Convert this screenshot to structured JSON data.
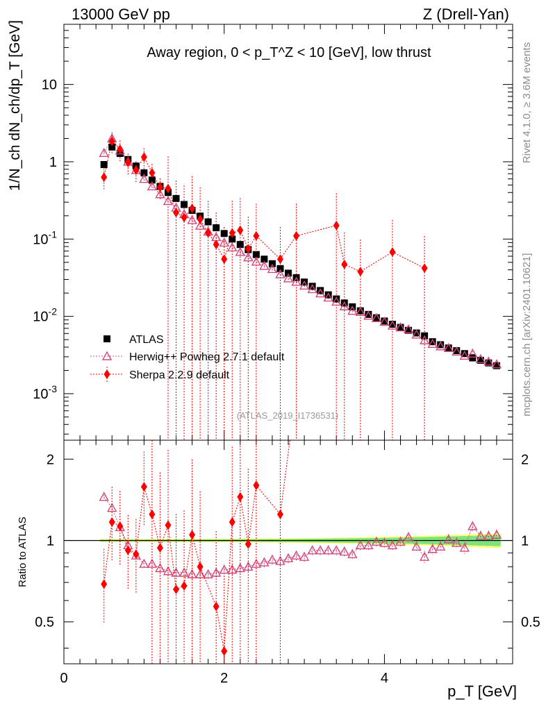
{
  "header": {
    "left": "13000 GeV pp",
    "right": "Z (Drell-Yan)"
  },
  "side": {
    "rivet": "Rivet 4.1.0, ≥ 3.6M events",
    "mcplots": "mcplots.cern.ch [arXiv:2401.10621]"
  },
  "chart_data": {
    "type": "scatter",
    "title": "Away region, 0 < p_T^Z < 10 [GeV], low thrust",
    "analysis_label": "(ATLAS_2019_I1736531)",
    "xlabel": "p_T [GeV]",
    "ylabel_main": "1/N_ch dN_ch/dp_T [GeV]",
    "ylabel_ratio": "Ratio to ATLAS",
    "xlim": [
      0,
      5.6
    ],
    "ylim_main": [
      0.00025,
      60
    ],
    "ylim_ratio": [
      0.35,
      2.35
    ],
    "yscale_main": "log",
    "yscale_ratio": "log",
    "x_ticks": [
      "0",
      "2",
      "4"
    ],
    "y_ticks_main": [
      "10",
      "1",
      "10^-1",
      "10^-2",
      "10^-3"
    ],
    "y_ticks_ratio": [
      "2",
      "1",
      "0.5"
    ],
    "legend_position": "lower-left",
    "x": [
      0.5,
      0.6,
      0.7,
      0.8,
      0.9,
      1.0,
      1.1,
      1.2,
      1.3,
      1.4,
      1.5,
      1.6,
      1.7,
      1.8,
      1.9,
      2.0,
      2.1,
      2.2,
      2.3,
      2.4,
      2.5,
      2.6,
      2.7,
      2.8,
      2.9,
      3.0,
      3.1,
      3.2,
      3.3,
      3.4,
      3.5,
      3.6,
      3.7,
      3.8,
      3.9,
      4.0,
      4.1,
      4.2,
      4.3,
      4.4,
      4.5,
      4.6,
      4.7,
      4.8,
      4.9,
      5.0,
      5.1,
      5.2,
      5.3,
      5.4
    ],
    "series": [
      {
        "name": "ATLAS",
        "marker": "square",
        "color": "#000000",
        "values": [
          0.92,
          1.55,
          1.28,
          1.07,
          0.88,
          0.72,
          0.58,
          0.48,
          0.4,
          0.335,
          0.28,
          0.235,
          0.198,
          0.167,
          0.14,
          0.118,
          0.1,
          0.085,
          0.073,
          0.063,
          0.055,
          0.048,
          0.0415,
          0.0362,
          0.0317,
          0.0278,
          0.0245,
          0.0216,
          0.019,
          0.0168,
          0.0149,
          0.0133,
          0.0118,
          0.0106,
          0.0096,
          0.0087,
          0.0079,
          0.0072,
          0.0066,
          0.0061,
          0.0056,
          0.0047,
          0.0043,
          0.0039,
          0.0036,
          0.0033,
          0.0029,
          0.0027,
          0.0025,
          0.0023
        ]
      },
      {
        "name": "Herwig++ Powheg 2.7.1 default",
        "marker": "open-triangle",
        "color": "#d0487e",
        "values": [
          1.3,
          2.0,
          1.4,
          1.0,
          0.78,
          0.6,
          0.48,
          0.38,
          0.31,
          0.255,
          0.21,
          0.176,
          0.149,
          0.125,
          0.106,
          0.09,
          0.078,
          0.068,
          0.058,
          0.051,
          0.045,
          0.041,
          0.035,
          0.031,
          0.028,
          0.025,
          0.0225,
          0.0198,
          0.0175,
          0.0155,
          0.0135,
          0.0118,
          0.0114,
          0.0102,
          0.0095,
          0.0085,
          0.0076,
          0.0072,
          0.0068,
          0.0058,
          0.0049,
          0.0044,
          0.0041,
          0.0039,
          0.0035,
          0.0031,
          0.0033,
          0.0028,
          0.0026,
          0.0024
        ],
        "ratio": [
          1.45,
          1.32,
          1.12,
          0.96,
          0.88,
          0.82,
          0.82,
          0.79,
          0.77,
          0.76,
          0.76,
          0.75,
          0.75,
          0.75,
          0.76,
          0.78,
          0.78,
          0.79,
          0.8,
          0.82,
          0.83,
          0.85,
          0.84,
          0.86,
          0.88,
          0.87,
          0.92,
          0.92,
          0.92,
          0.92,
          0.91,
          0.89,
          0.96,
          0.96,
          0.99,
          0.98,
          0.96,
          0.99,
          1.03,
          0.95,
          0.87,
          0.93,
          0.95,
          1.01,
          0.98,
          0.94,
          1.13,
          1.04,
          1.04,
          1.05
        ]
      },
      {
        "name": "Sherpa 2.2.9 default",
        "marker": "diamond",
        "color": "#ff0000",
        "values": [
          0.63,
          1.85,
          1.45,
          0.98,
          0.78,
          1.15,
          0.72,
          0.47,
          0.45,
          0.22,
          0.19,
          0.25,
          0.18,
          0.12,
          0.085,
          0.055,
          0.12,
          0.13,
          0.075,
          0.11,
          null,
          null,
          0.055,
          null,
          0.11,
          null,
          null,
          null,
          null,
          0.15,
          0.047,
          null,
          0.038,
          null,
          null,
          null,
          0.068,
          null,
          null,
          null,
          0.042
        ],
        "ratio": [
          0.69,
          1.17,
          1.13,
          0.92,
          0.89,
          1.58,
          1.25,
          0.94,
          1.14,
          0.66,
          0.68,
          1.05,
          0.8,
          0.57,
          0.39,
          1.17,
          1.45,
          0.97,
          1.6,
          1.25
        ]
      }
    ],
    "sherpa_ratio_x": [
      0.5,
      0.6,
      0.7,
      0.8,
      0.9,
      1.0,
      1.1,
      1.2,
      1.3,
      1.4,
      1.5,
      1.6,
      1.7,
      1.9,
      2.0,
      2.1,
      2.2,
      2.3,
      2.4,
      2.7
    ]
  }
}
